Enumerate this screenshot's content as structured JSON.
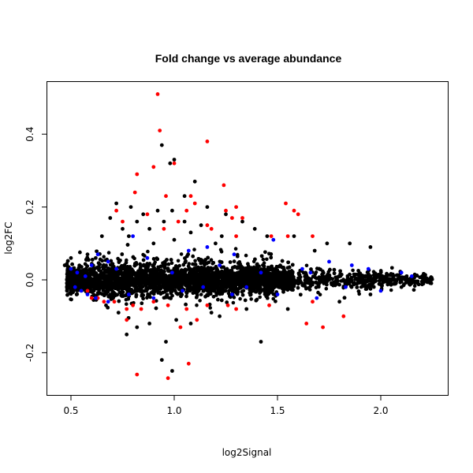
{
  "chart_data": {
    "type": "scatter",
    "title": "Fold change vs average abundance",
    "xlabel": "log2Signal",
    "ylabel": "log2FC",
    "xlim": [
      0.45,
      2.3
    ],
    "ylim": [
      -0.3,
      0.53
    ],
    "x_ticks": [
      0.5,
      1.0,
      1.5,
      2.0
    ],
    "x_tick_labels": [
      "0.5",
      "1.0",
      "1.5",
      "2.0"
    ],
    "y_ticks": [
      -0.2,
      0.0,
      0.2,
      0.4
    ],
    "y_tick_labels": [
      "-0.2",
      "0.0",
      "0.2",
      "0.4"
    ],
    "grid": false,
    "colors": {
      "background": "#000000",
      "up": "#ff0000",
      "down": "#0000ff"
    },
    "series": [
      {
        "color": "#000000",
        "points": [
          [
            0.94,
            0.37
          ],
          [
            0.98,
            0.32
          ],
          [
            1.0,
            0.33
          ],
          [
            1.1,
            0.27
          ],
          [
            1.05,
            0.23
          ],
          [
            0.72,
            0.21
          ],
          [
            0.79,
            0.2
          ],
          [
            0.92,
            0.19
          ],
          [
            1.16,
            0.2
          ],
          [
            1.25,
            0.18
          ],
          [
            0.69,
            0.17
          ],
          [
            0.85,
            0.18
          ],
          [
            0.99,
            0.19
          ],
          [
            1.05,
            0.16
          ],
          [
            1.33,
            0.16
          ],
          [
            0.75,
            0.14
          ],
          [
            0.82,
            0.16
          ],
          [
            0.95,
            0.16
          ],
          [
            1.13,
            0.15
          ],
          [
            1.39,
            0.14
          ],
          [
            0.65,
            0.12
          ],
          [
            0.88,
            0.14
          ],
          [
            1.08,
            0.13
          ],
          [
            1.23,
            0.12
          ],
          [
            1.45,
            0.12
          ],
          [
            1.58,
            0.12
          ],
          [
            1.74,
            0.1
          ],
          [
            1.85,
            0.1
          ],
          [
            1.95,
            0.09
          ],
          [
            1.68,
            0.08
          ],
          [
            0.58,
            0.07
          ],
          [
            0.62,
            0.06
          ],
          [
            0.9,
            0.1
          ],
          [
            1.0,
            0.11
          ],
          [
            1.2,
            0.1
          ],
          [
            0.47,
            0.04
          ],
          [
            0.5,
            0.06
          ],
          [
            0.78,
            0.12
          ],
          [
            0.77,
            -0.15
          ],
          [
            0.82,
            -0.13
          ],
          [
            0.88,
            -0.12
          ],
          [
            0.94,
            -0.22
          ],
          [
            0.96,
            -0.17
          ],
          [
            1.01,
            -0.11
          ],
          [
            1.08,
            -0.12
          ],
          [
            1.22,
            -0.1
          ],
          [
            1.42,
            -0.17
          ],
          [
            1.55,
            -0.08
          ],
          [
            1.35,
            -0.08
          ],
          [
            1.18,
            -0.09
          ],
          [
            0.99,
            -0.25
          ],
          [
            0.73,
            -0.09
          ],
          [
            0.67,
            -0.07
          ],
          [
            1.8,
            -0.06
          ],
          [
            1.95,
            -0.04
          ],
          [
            2.1,
            -0.02
          ],
          [
            2.2,
            0.01
          ],
          [
            2.24,
            0.0
          ]
        ]
      },
      {
        "color": "#ff0000",
        "points": [
          [
            0.92,
            0.51
          ],
          [
            0.93,
            0.41
          ],
          [
            1.16,
            0.38
          ],
          [
            0.82,
            0.29
          ],
          [
            0.9,
            0.31
          ],
          [
            1.0,
            0.32
          ],
          [
            1.24,
            0.26
          ],
          [
            0.81,
            0.24
          ],
          [
            0.96,
            0.23
          ],
          [
            1.08,
            0.23
          ],
          [
            1.1,
            0.21
          ],
          [
            0.72,
            0.19
          ],
          [
            1.06,
            0.19
          ],
          [
            1.25,
            0.19
          ],
          [
            1.3,
            0.2
          ],
          [
            1.54,
            0.21
          ],
          [
            1.58,
            0.19
          ],
          [
            1.6,
            0.18
          ],
          [
            0.87,
            0.18
          ],
          [
            1.28,
            0.17
          ],
          [
            1.02,
            0.16
          ],
          [
            1.16,
            0.15
          ],
          [
            1.33,
            0.17
          ],
          [
            0.75,
            0.16
          ],
          [
            0.95,
            0.14
          ],
          [
            1.18,
            0.14
          ],
          [
            1.3,
            0.12
          ],
          [
            1.47,
            0.12
          ],
          [
            1.55,
            0.12
          ],
          [
            1.67,
            0.12
          ],
          [
            0.63,
            -0.05
          ],
          [
            0.66,
            -0.06
          ],
          [
            0.71,
            -0.06
          ],
          [
            0.77,
            -0.08
          ],
          [
            0.8,
            -0.07
          ],
          [
            0.84,
            -0.08
          ],
          [
            0.9,
            -0.06
          ],
          [
            0.97,
            -0.07
          ],
          [
            1.03,
            -0.13
          ],
          [
            1.11,
            -0.11
          ],
          [
            1.26,
            -0.07
          ],
          [
            1.3,
            -0.08
          ],
          [
            1.46,
            -0.07
          ],
          [
            1.64,
            -0.12
          ],
          [
            1.72,
            -0.13
          ],
          [
            1.82,
            -0.1
          ],
          [
            0.82,
            -0.26
          ],
          [
            0.97,
            -0.27
          ],
          [
            1.07,
            -0.23
          ],
          [
            0.77,
            -0.11
          ],
          [
            0.58,
            -0.03
          ],
          [
            0.6,
            -0.05
          ],
          [
            1.06,
            -0.08
          ],
          [
            1.16,
            -0.07
          ],
          [
            1.67,
            -0.06
          ]
        ]
      },
      {
        "color": "#0000ff",
        "points": [
          [
            0.5,
            0.03
          ],
          [
            0.53,
            0.02
          ],
          [
            0.57,
            0.01
          ],
          [
            0.6,
            0.04
          ],
          [
            0.63,
            0.07
          ],
          [
            0.68,
            0.05
          ],
          [
            0.72,
            0.03
          ],
          [
            0.8,
            0.12
          ],
          [
            0.87,
            0.06
          ],
          [
            0.99,
            0.02
          ],
          [
            1.07,
            0.08
          ],
          [
            1.16,
            0.09
          ],
          [
            1.22,
            0.04
          ],
          [
            1.29,
            0.07
          ],
          [
            1.42,
            0.02
          ],
          [
            1.48,
            0.11
          ],
          [
            1.62,
            0.03
          ],
          [
            1.66,
            0.02
          ],
          [
            1.75,
            0.05
          ],
          [
            1.86,
            0.04
          ],
          [
            1.94,
            0.03
          ],
          [
            2.1,
            0.02
          ],
          [
            2.15,
            0.01
          ],
          [
            0.52,
            -0.02
          ],
          [
            0.55,
            -0.03
          ],
          [
            0.58,
            -0.04
          ],
          [
            0.62,
            -0.05
          ],
          [
            0.68,
            -0.06
          ],
          [
            0.78,
            -0.04
          ],
          [
            0.9,
            -0.05
          ],
          [
            1.04,
            -0.03
          ],
          [
            1.14,
            -0.02
          ],
          [
            1.28,
            -0.04
          ],
          [
            1.35,
            -0.02
          ],
          [
            1.5,
            -0.04
          ],
          [
            1.69,
            -0.05
          ],
          [
            1.83,
            -0.02
          ],
          [
            2.0,
            -0.03
          ]
        ]
      }
    ]
  }
}
